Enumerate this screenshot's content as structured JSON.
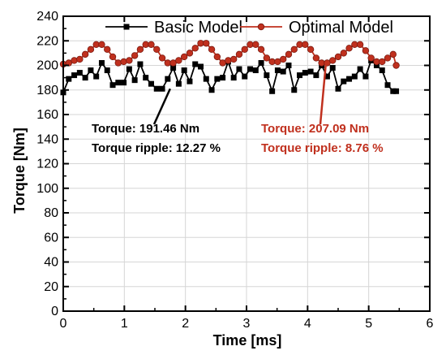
{
  "chart_data": {
    "type": "line",
    "xlabel": "Time [ms]",
    "ylabel": "Torque [Nm]",
    "xlim": [
      0,
      6
    ],
    "ylim": [
      0,
      240
    ],
    "xticks": [
      0,
      1,
      2,
      3,
      4,
      5,
      6
    ],
    "yticks": [
      0,
      20,
      40,
      60,
      80,
      100,
      120,
      140,
      160,
      180,
      200,
      220,
      240
    ],
    "grid": true,
    "legend": "top",
    "series": [
      {
        "name": "Basic Model",
        "color": "#000000",
        "marker": "square",
        "x": [
          0,
          0.09,
          0.18,
          0.27,
          0.36,
          0.45,
          0.54,
          0.63,
          0.72,
          0.81,
          0.9,
          0.99,
          1.08,
          1.17,
          1.26,
          1.35,
          1.44,
          1.53,
          1.62,
          1.71,
          1.8,
          1.89,
          1.98,
          2.07,
          2.16,
          2.25,
          2.34,
          2.43,
          2.52,
          2.61,
          2.7,
          2.79,
          2.88,
          2.97,
          3.06,
          3.15,
          3.24,
          3.33,
          3.42,
          3.51,
          3.6,
          3.69,
          3.78,
          3.87,
          3.96,
          4.05,
          4.14,
          4.23,
          4.32,
          4.41,
          4.5,
          4.59,
          4.68,
          4.77,
          4.86,
          4.95,
          5.04,
          5.13,
          5.22,
          5.31,
          5.4,
          5.45
        ],
        "y": [
          178,
          189,
          192,
          194,
          190,
          196,
          191,
          202,
          196,
          184,
          186,
          186,
          197,
          188,
          201,
          190,
          185,
          181,
          181,
          189,
          198,
          185,
          196,
          187,
          201,
          199,
          189,
          180,
          189,
          190,
          203,
          190,
          197,
          191,
          197,
          196,
          202,
          192,
          179,
          196,
          195,
          200,
          180,
          192,
          194,
          195,
          192,
          200,
          191,
          198,
          181,
          187,
          189,
          191,
          197,
          191,
          204,
          200,
          196,
          184,
          179,
          179
        ]
      },
      {
        "name": "Optimal Model",
        "color": "#c0301e",
        "marker": "circle",
        "x": [
          0,
          0.09,
          0.18,
          0.27,
          0.36,
          0.45,
          0.54,
          0.63,
          0.72,
          0.81,
          0.9,
          0.99,
          1.08,
          1.17,
          1.26,
          1.35,
          1.44,
          1.53,
          1.62,
          1.71,
          1.8,
          1.89,
          1.98,
          2.07,
          2.16,
          2.25,
          2.34,
          2.43,
          2.52,
          2.61,
          2.7,
          2.79,
          2.88,
          2.97,
          3.06,
          3.15,
          3.24,
          3.33,
          3.42,
          3.51,
          3.6,
          3.69,
          3.78,
          3.87,
          3.96,
          4.05,
          4.14,
          4.23,
          4.32,
          4.41,
          4.5,
          4.59,
          4.68,
          4.77,
          4.86,
          4.95,
          5.04,
          5.13,
          5.22,
          5.31,
          5.4,
          5.45
        ],
        "y": [
          201,
          202,
          204,
          205,
          209,
          213,
          217,
          217,
          213,
          207,
          202,
          203,
          204,
          208,
          213,
          217,
          217,
          213,
          206,
          202,
          202,
          204,
          207,
          210,
          214,
          218,
          218,
          213,
          207,
          202,
          204,
          205,
          209,
          213,
          217,
          217,
          213,
          206,
          203,
          203,
          205,
          209,
          213,
          217,
          217,
          213,
          206,
          202,
          202,
          204,
          207,
          210,
          214,
          217,
          217,
          212,
          206,
          203,
          203,
          206,
          209,
          200
        ]
      }
    ],
    "annotations": [
      {
        "lines": [
          "Torque: 191.46 Nm",
          "Torque ripple: 12.27 %"
        ],
        "color": "#000000",
        "target": [
          1.75,
          181
        ]
      },
      {
        "lines": [
          "Torque: 207.09 Nm",
          "Torque ripple: 8.76 %"
        ],
        "color": "#c0301e",
        "target": [
          4.3,
          202
        ]
      }
    ]
  }
}
